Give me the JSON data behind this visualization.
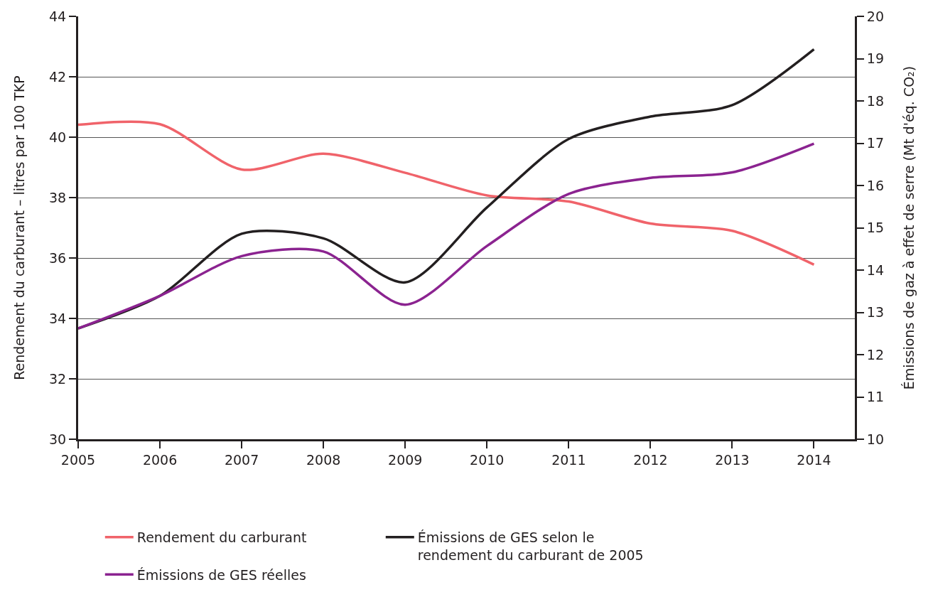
{
  "chart_data": {
    "type": "line",
    "ylabel": "Rendement du carburant – litres par 100 TKP",
    "y2label": "Émissions de gaz à effet de serre (Mt d'éq. CO₂)",
    "x": [
      2005,
      2006,
      2007,
      2008,
      2009,
      2010,
      2011,
      2012,
      2013,
      2014
    ],
    "xlim": [
      2005,
      2014.5
    ],
    "xticks": [
      2005,
      2006,
      2007,
      2008,
      2009,
      2010,
      2011,
      2012,
      2013,
      2014
    ],
    "ylim": [
      30,
      44
    ],
    "yticks": [
      30,
      32,
      34,
      36,
      38,
      40,
      42,
      44
    ],
    "y2lim": [
      10,
      20
    ],
    "y2ticks": [
      10,
      11,
      12,
      13,
      14,
      15,
      16,
      17,
      18,
      19,
      20
    ],
    "grid": "y",
    "legend": "bottom",
    "marker": "none",
    "line_style": "solid",
    "series": [
      {
        "name": "Rendement du carburant",
        "color": "#f0636a",
        "values": [
          40.41,
          40.43,
          38.93,
          39.45,
          38.82,
          38.07,
          37.87,
          37.14,
          36.9,
          35.78
        ]
      },
      {
        "name": "Émissions de GES selon le rendement du carburant de 2005",
        "color": "#231f20",
        "axis": "y2",
        "values": [
          12.62,
          13.39,
          14.86,
          14.75,
          13.71,
          15.48,
          17.1,
          17.63,
          17.9,
          19.22
        ]
      },
      {
        "name": "Émissions de GES réelles",
        "color": "#8b2390",
        "axis": "y2",
        "values": [
          12.62,
          13.39,
          14.33,
          14.44,
          13.18,
          14.57,
          15.8,
          16.18,
          16.31,
          16.99
        ]
      }
    ]
  }
}
